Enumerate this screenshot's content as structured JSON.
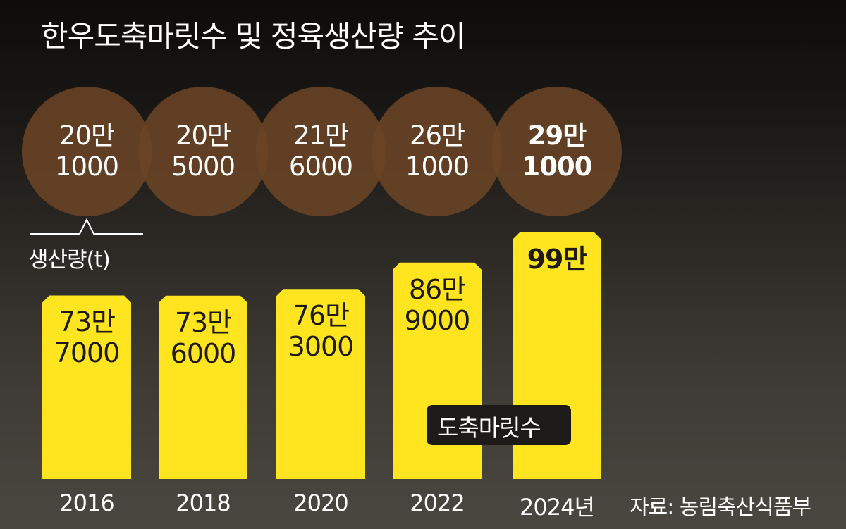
{
  "title": "한우도축마릿수 및 정육생산량 추이",
  "chart_data": {
    "type": "bar",
    "title": "한우도축마릿수 및 정육생산량 추이",
    "categories": [
      "2016",
      "2018",
      "2020",
      "2022",
      "2024년"
    ],
    "series": [
      {
        "name": "생산량(t)",
        "values": [
          737000,
          736000,
          763000,
          869000,
          990000
        ],
        "labels": [
          [
            "73만",
            "7000"
          ],
          [
            "73만",
            "6000"
          ],
          [
            "76만",
            "3000"
          ],
          [
            "86만",
            "9000"
          ],
          [
            "99만"
          ]
        ]
      },
      {
        "name": "도축마릿수",
        "values": [
          201000,
          205000,
          216000,
          261000,
          291000
        ],
        "labels": [
          [
            "20만",
            "1000"
          ],
          [
            "20만",
            "5000"
          ],
          [
            "21만",
            "6000"
          ],
          [
            "26만",
            "1000"
          ],
          [
            "29만",
            "1000"
          ]
        ]
      }
    ],
    "ylabel": "생산량(t)",
    "grid": false,
    "legend": "도축마릿수",
    "colors": {
      "bar": "#ffe51f",
      "circle": "#6b4426",
      "title": "#ffffff"
    }
  },
  "source": "자료: 농림축산식품부"
}
